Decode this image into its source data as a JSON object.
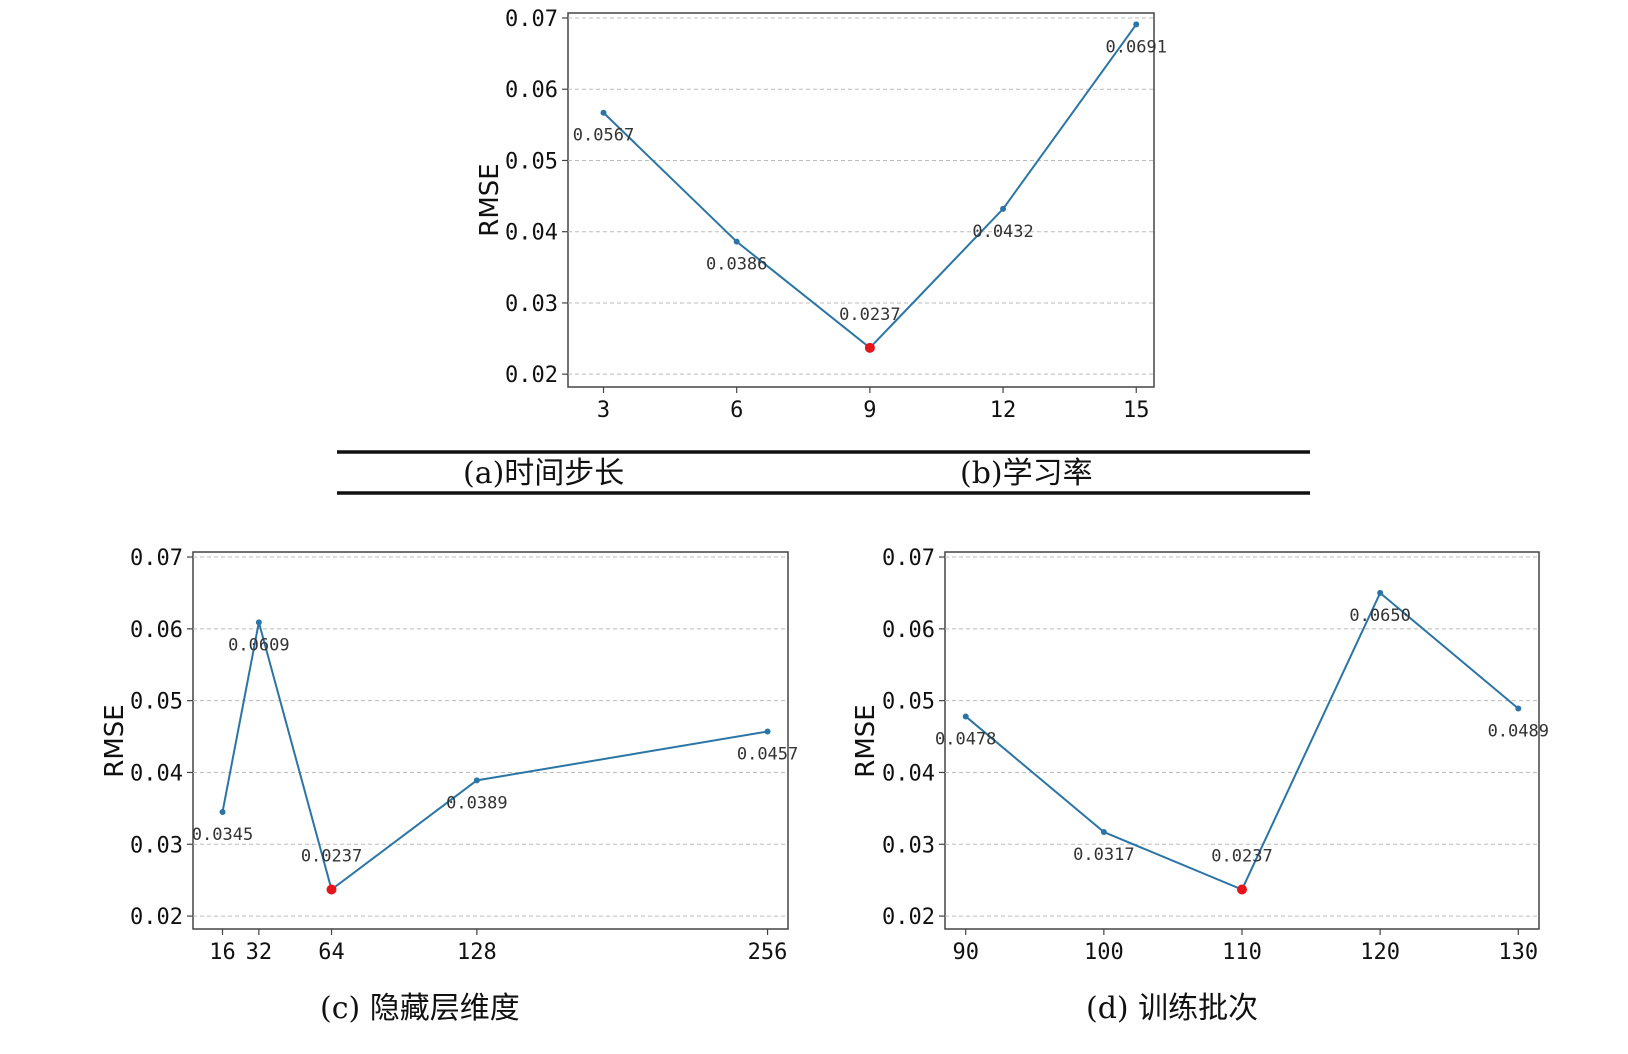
{
  "captions": {
    "a": "(a)时间步长",
    "b": "(b)学习率",
    "c": "(c) 隐藏层维度",
    "d": "(d) 训练批次"
  },
  "colors": {
    "line": "#2a75a6",
    "best_point": "#e8141c",
    "grid": "#bbbbbb",
    "axes": "#444444"
  },
  "chart_data": [
    {
      "id": "top",
      "type": "line",
      "x": [
        3,
        6,
        9,
        12,
        15
      ],
      "values": [
        0.0567,
        0.0386,
        0.0237,
        0.0432,
        0.0691
      ],
      "labels": [
        "0.0567",
        "0.0386",
        "0.0237",
        "0.0432",
        "0.0691"
      ],
      "x_tick_labels": [
        "3",
        "6",
        "9",
        "12",
        "15"
      ],
      "ylabel": "RMSE",
      "xlabel": "",
      "ylim": [
        0.02,
        0.07
      ],
      "y_ticks": [
        "0.02",
        "0.03",
        "0.04",
        "0.05",
        "0.06",
        "0.07"
      ],
      "grid": "horizontal dashed",
      "highlight_x": 9
    },
    {
      "id": "c",
      "type": "line",
      "x": [
        16,
        32,
        64,
        128,
        256
      ],
      "values": [
        0.0345,
        0.0609,
        0.0237,
        0.0389,
        0.0457
      ],
      "labels": [
        "0.0345",
        "0.0609",
        "0.0237",
        "0.0389",
        "0.0457"
      ],
      "x_tick_labels": [
        "16",
        "32",
        "64",
        "128",
        "256"
      ],
      "ylabel": "RMSE",
      "xlabel": "",
      "ylim": [
        0.02,
        0.07
      ],
      "y_ticks": [
        "0.02",
        "0.03",
        "0.04",
        "0.05",
        "0.06",
        "0.07"
      ],
      "grid": "horizontal dashed",
      "highlight_x": 64
    },
    {
      "id": "d",
      "type": "line",
      "x": [
        90,
        100,
        110,
        120,
        130
      ],
      "values": [
        0.0478,
        0.0317,
        0.0237,
        0.065,
        0.0489
      ],
      "labels": [
        "0.0478",
        "0.0317",
        "0.0237",
        "0.0650",
        "0.0489"
      ],
      "x_tick_labels": [
        "90",
        "100",
        "110",
        "120",
        "130"
      ],
      "ylabel": "RMSE",
      "xlabel": "",
      "ylim": [
        0.02,
        0.07
      ],
      "y_ticks": [
        "0.02",
        "0.03",
        "0.04",
        "0.05",
        "0.06",
        "0.07"
      ],
      "grid": "horizontal dashed",
      "highlight_x": 110
    }
  ]
}
